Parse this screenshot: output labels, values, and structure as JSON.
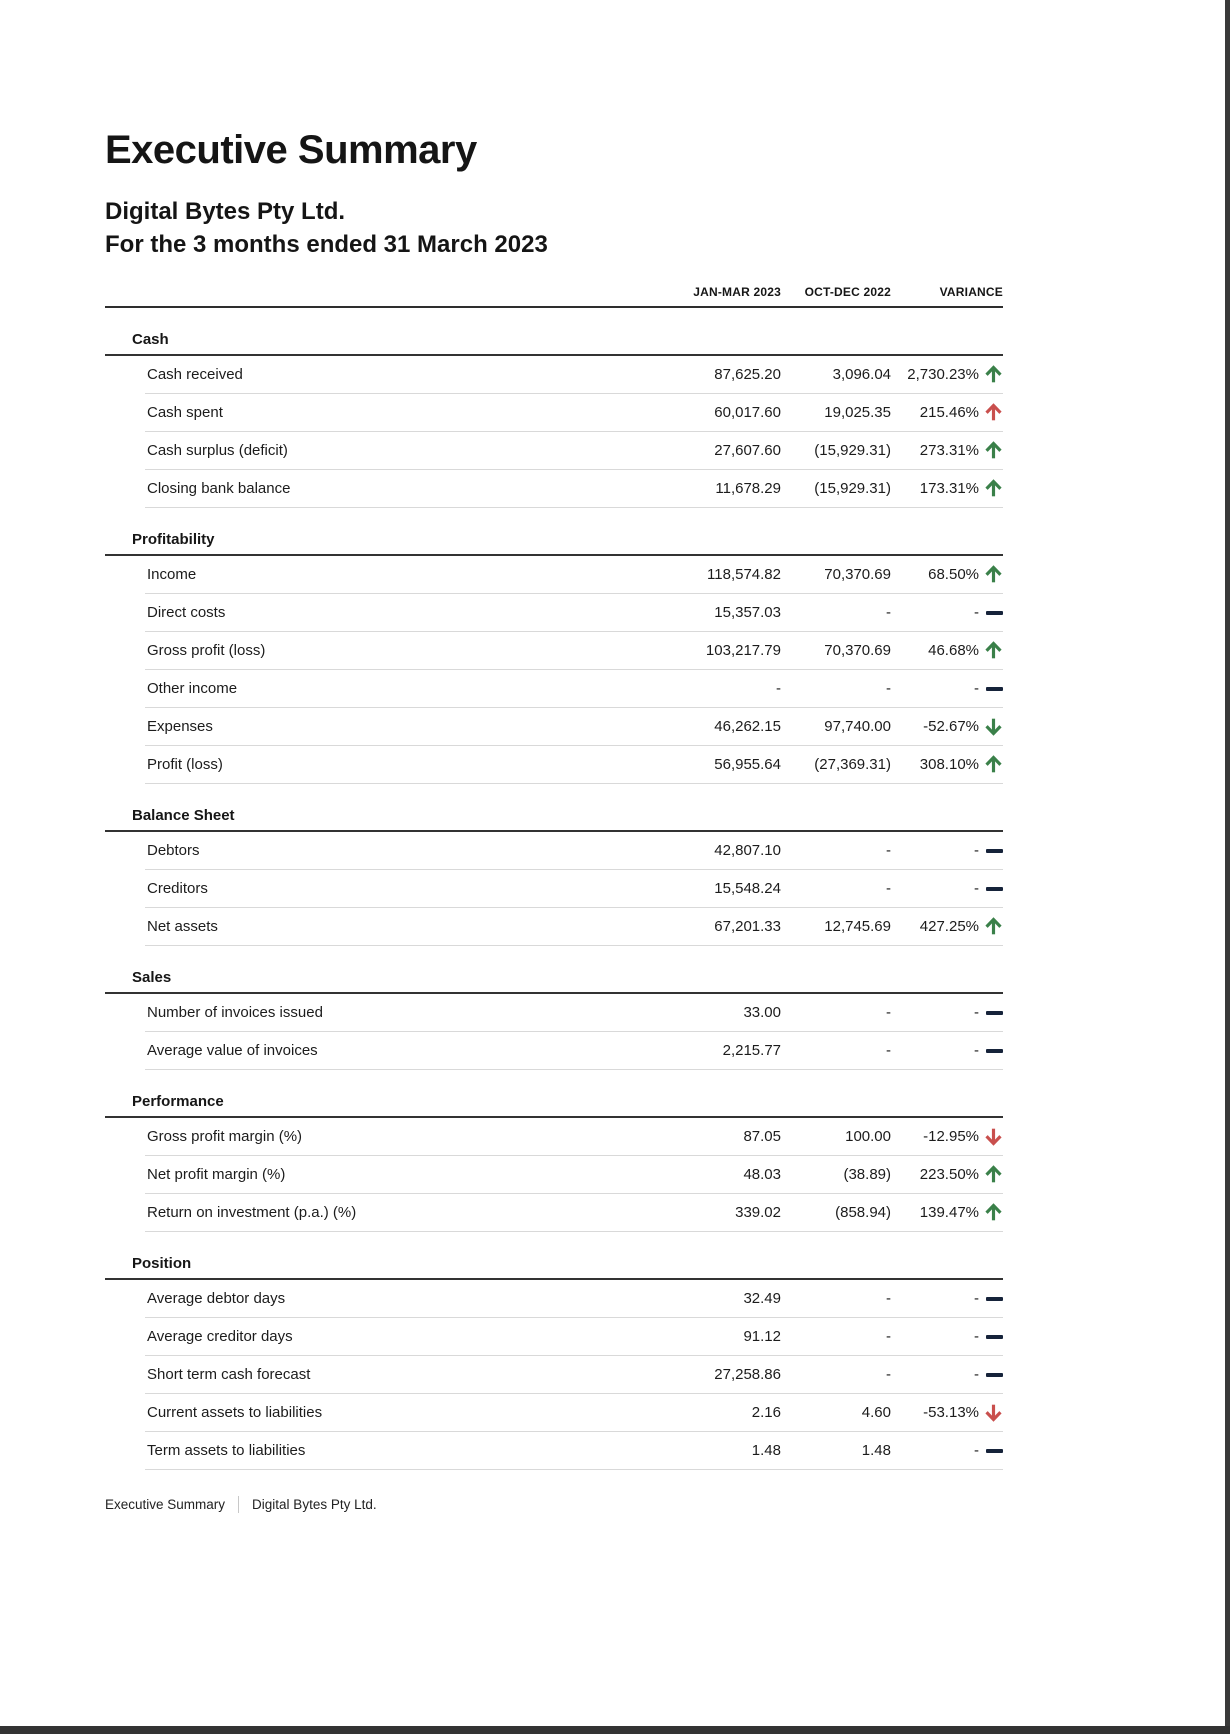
{
  "page": {
    "title": "Executive Summary",
    "company": "Digital Bytes Pty Ltd.",
    "period": "For the 3 months ended 31 March 2023"
  },
  "table": {
    "columns": [
      "JAN-MAR 2023",
      "OCT-DEC 2022",
      "VARIANCE"
    ],
    "sections": [
      {
        "name": "Cash",
        "rows": [
          {
            "label": "Cash received",
            "current": "87,625.20",
            "prior": "3,096.04",
            "variance": "2,730.23%",
            "indicator": "up",
            "indicator_color": "green"
          },
          {
            "label": "Cash spent",
            "current": "60,017.60",
            "prior": "19,025.35",
            "variance": "215.46%",
            "indicator": "up",
            "indicator_color": "red"
          },
          {
            "label": "Cash surplus (deficit)",
            "current": "27,607.60",
            "prior": "(15,929.31)",
            "variance": "273.31%",
            "indicator": "up",
            "indicator_color": "green"
          },
          {
            "label": "Closing bank balance",
            "current": "11,678.29",
            "prior": "(15,929.31)",
            "variance": "173.31%",
            "indicator": "up",
            "indicator_color": "green"
          }
        ]
      },
      {
        "name": "Profitability",
        "rows": [
          {
            "label": "Income",
            "current": "118,574.82",
            "prior": "70,370.69",
            "variance": "68.50%",
            "indicator": "up",
            "indicator_color": "green"
          },
          {
            "label": "Direct costs",
            "current": "15,357.03",
            "prior": "-",
            "variance": "-",
            "indicator": "flat",
            "indicator_color": "dark"
          },
          {
            "label": "Gross profit (loss)",
            "current": "103,217.79",
            "prior": "70,370.69",
            "variance": "46.68%",
            "indicator": "up",
            "indicator_color": "green"
          },
          {
            "label": "Other income",
            "current": "-",
            "prior": "-",
            "variance": "-",
            "indicator": "flat",
            "indicator_color": "dark"
          },
          {
            "label": "Expenses",
            "current": "46,262.15",
            "prior": "97,740.00",
            "variance": "-52.67%",
            "indicator": "down",
            "indicator_color": "green"
          },
          {
            "label": "Profit (loss)",
            "current": "56,955.64",
            "prior": "(27,369.31)",
            "variance": "308.10%",
            "indicator": "up",
            "indicator_color": "green"
          }
        ]
      },
      {
        "name": "Balance Sheet",
        "rows": [
          {
            "label": "Debtors",
            "current": "42,807.10",
            "prior": "-",
            "variance": "-",
            "indicator": "flat",
            "indicator_color": "dark"
          },
          {
            "label": "Creditors",
            "current": "15,548.24",
            "prior": "-",
            "variance": "-",
            "indicator": "flat",
            "indicator_color": "dark"
          },
          {
            "label": "Net assets",
            "current": "67,201.33",
            "prior": "12,745.69",
            "variance": "427.25%",
            "indicator": "up",
            "indicator_color": "green"
          }
        ]
      },
      {
        "name": "Sales",
        "rows": [
          {
            "label": "Number of invoices issued",
            "current": "33.00",
            "prior": "-",
            "variance": "-",
            "indicator": "flat",
            "indicator_color": "dark"
          },
          {
            "label": "Average value of invoices",
            "current": "2,215.77",
            "prior": "-",
            "variance": "-",
            "indicator": "flat",
            "indicator_color": "dark"
          }
        ]
      },
      {
        "name": "Performance",
        "rows": [
          {
            "label": "Gross profit margin (%)",
            "current": "87.05",
            "prior": "100.00",
            "variance": "-12.95%",
            "indicator": "down",
            "indicator_color": "red"
          },
          {
            "label": "Net profit margin (%)",
            "current": "48.03",
            "prior": "(38.89)",
            "variance": "223.50%",
            "indicator": "up",
            "indicator_color": "green"
          },
          {
            "label": "Return on investment (p.a.) (%)",
            "current": "339.02",
            "prior": "(858.94)",
            "variance": "139.47%",
            "indicator": "up",
            "indicator_color": "green"
          }
        ]
      },
      {
        "name": "Position",
        "rows": [
          {
            "label": "Average debtor days",
            "current": "32.49",
            "prior": "-",
            "variance": "-",
            "indicator": "flat",
            "indicator_color": "dark"
          },
          {
            "label": "Average creditor days",
            "current": "91.12",
            "prior": "-",
            "variance": "-",
            "indicator": "flat",
            "indicator_color": "dark"
          },
          {
            "label": "Short term cash forecast",
            "current": "27,258.86",
            "prior": "-",
            "variance": "-",
            "indicator": "flat",
            "indicator_color": "dark"
          },
          {
            "label": "Current assets to liabilities",
            "current": "2.16",
            "prior": "4.60",
            "variance": "-53.13%",
            "indicator": "down",
            "indicator_color": "red"
          },
          {
            "label": "Term assets to liabilities",
            "current": "1.48",
            "prior": "1.48",
            "variance": "-",
            "indicator": "flat",
            "indicator_color": "dark"
          }
        ]
      }
    ]
  },
  "footer": {
    "report_name": "Executive Summary",
    "company_name": "Digital Bytes Pty Ltd."
  },
  "colors": {
    "green": "#3a8049",
    "red": "#c94f4d",
    "dark": "#16233a"
  }
}
